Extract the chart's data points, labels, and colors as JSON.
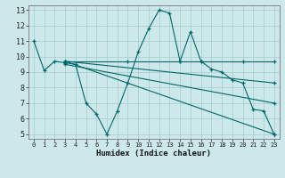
{
  "xlabel": "Humidex (Indice chaleur)",
  "bg_color": "#cce8eb",
  "grid_color": "#aacfd4",
  "line_color": "#006868",
  "xlim": [
    -0.5,
    23.5
  ],
  "ylim": [
    4.7,
    13.3
  ],
  "xticks": [
    0,
    1,
    2,
    3,
    4,
    5,
    6,
    7,
    8,
    9,
    10,
    11,
    12,
    13,
    14,
    15,
    16,
    17,
    18,
    19,
    20,
    21,
    22,
    23
  ],
  "yticks": [
    5,
    6,
    7,
    8,
    9,
    10,
    11,
    12,
    13
  ],
  "lines": [
    {
      "x": [
        0,
        1,
        2,
        3,
        4,
        5,
        6,
        7,
        8,
        9,
        10,
        11,
        12,
        13,
        14,
        15,
        16,
        17,
        18,
        19,
        20,
        21,
        22,
        23
      ],
      "y": [
        11,
        9.1,
        9.7,
        9.6,
        9.5,
        7.0,
        6.3,
        5.0,
        6.5,
        8.3,
        10.3,
        11.8,
        13.0,
        12.8,
        9.7,
        11.6,
        9.7,
        9.2,
        9.0,
        8.5,
        8.3,
        6.6,
        6.5,
        5.0
      ]
    },
    {
      "x": [
        3,
        9,
        14,
        16,
        20,
        23
      ],
      "y": [
        9.7,
        9.7,
        9.7,
        9.7,
        9.7,
        9.7
      ]
    },
    {
      "x": [
        3,
        23
      ],
      "y": [
        9.7,
        8.3
      ]
    },
    {
      "x": [
        3,
        23
      ],
      "y": [
        9.7,
        5.0
      ]
    },
    {
      "x": [
        3,
        23
      ],
      "y": [
        9.5,
        7.0
      ]
    }
  ]
}
